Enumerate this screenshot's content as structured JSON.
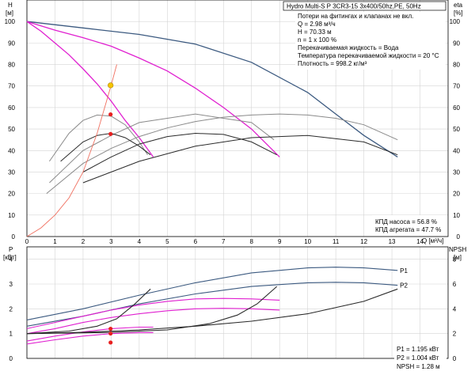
{
  "header": {
    "pump_title": "Hydro Multi-S P 3CR3-15 3x400/50hz,PE, 50Hz"
  },
  "info": {
    "lines": [
      "Потери на фитингах и клапанах не вкл.",
      "Q = 2.98 м³/ч",
      "H = 70.33 м",
      "n = 1 x 100 %",
      "Перекачиваемая жидкость = Вода",
      "Температура перекачиваемой жидкости = 20 °C",
      "Плотность = 998.2 кг/м³"
    ],
    "eff_lines": [
      "КПД насоса = 56.8 %",
      "КПД агрегата = 47.7 %"
    ],
    "power_lines": [
      "P1 = 1.195 кВт",
      "P2 = 1.004 кВт",
      "NPSH = 1.28 м"
    ]
  },
  "colors": {
    "dark_blue": "#3c5a80",
    "magenta": "#e020d0",
    "dark": "#2a2a2a",
    "grey": "#8a8a8a",
    "system_curve": "#f07060",
    "point_marker": "#e82020",
    "duty_marker": "#f5c400",
    "grid": "#d4d4d4"
  },
  "chart_data": [
    {
      "type": "line",
      "name": "head_efficiency",
      "xlabel": "Q [м³/ч]",
      "ylabel_left": "H",
      "ylabel_left_unit": "[м]",
      "ylabel_right": "eta",
      "ylabel_right_unit": "[%]",
      "xlim": [
        0,
        15
      ],
      "ylim": [
        0,
        110
      ],
      "y2lim": [
        0,
        110
      ],
      "xticks": [
        0,
        1,
        2,
        3,
        4,
        5,
        6,
        7,
        8,
        9,
        10,
        11,
        12,
        13,
        14
      ],
      "yticks": [
        0,
        10,
        20,
        30,
        40,
        50,
        60,
        70,
        80,
        90,
        100
      ],
      "grid": true,
      "series": [
        {
          "kind": "head",
          "color": "dark_blue",
          "x": [
            0,
            2,
            4,
            6,
            8,
            10,
            11,
            12,
            13.2
          ],
          "y": [
            100,
            97,
            94,
            89.5,
            81,
            67,
            57,
            47,
            37
          ]
        },
        {
          "kind": "head",
          "color": "magenta",
          "x": [
            0,
            1,
            2,
            3,
            4,
            5,
            6,
            7,
            8,
            9
          ],
          "y": [
            100,
            96,
            92.5,
            88.5,
            83,
            77,
            69,
            60,
            50,
            37
          ]
        },
        {
          "kind": "head",
          "color": "magenta",
          "x": [
            0,
            0.5,
            1,
            1.5,
            2,
            2.5,
            3,
            3.5,
            4,
            4.5
          ],
          "y": [
            100,
            95.5,
            90,
            84.5,
            78,
            71,
            63,
            54,
            46,
            37
          ]
        },
        {
          "kind": "efficiency",
          "color": "grey",
          "x": [
            0.8,
            1.5,
            2,
            2.5,
            3,
            3.5,
            4,
            4.3
          ],
          "y": [
            35,
            48,
            54,
            56.5,
            56,
            52,
            44,
            38
          ]
        },
        {
          "kind": "efficiency",
          "color": "grey",
          "x": [
            0.8,
            2,
            3,
            4,
            6,
            8,
            8.8
          ],
          "y": [
            25,
            40,
            47,
            53,
            57,
            53,
            45
          ]
        },
        {
          "kind": "efficiency",
          "color": "grey",
          "x": [
            0.7,
            2,
            3,
            4,
            5,
            6,
            7,
            8,
            9,
            10,
            11,
            12,
            13.2
          ],
          "y": [
            20,
            34,
            41,
            46.5,
            50.5,
            53.5,
            55.5,
            56.5,
            57,
            56.5,
            55,
            52,
            45
          ]
        },
        {
          "kind": "efficiency",
          "color": "dark",
          "x": [
            1.2,
            2,
            2.5,
            3,
            3.5,
            4,
            4.4
          ],
          "y": [
            35,
            44,
            47,
            48,
            46,
            42,
            38
          ]
        },
        {
          "kind": "efficiency",
          "color": "dark",
          "x": [
            2,
            3,
            4,
            5,
            6,
            7,
            8,
            8.9
          ],
          "y": [
            30,
            37,
            43,
            46.5,
            48,
            47.5,
            44,
            38
          ]
        },
        {
          "kind": "efficiency",
          "color": "dark",
          "x": [
            2,
            4,
            6,
            8,
            10,
            12,
            13.2
          ],
          "y": [
            25,
            35,
            42,
            46,
            47,
            44,
            38
          ]
        },
        {
          "kind": "system",
          "color": "system_curve",
          "x": [
            0,
            0.5,
            1,
            1.5,
            2,
            2.5,
            3,
            3.2
          ],
          "y": [
            0,
            4,
            10,
            18,
            30,
            48,
            70.33,
            80
          ]
        }
      ],
      "markers": [
        {
          "kind": "duty_point",
          "x": 2.98,
          "y": 70.33
        },
        {
          "kind": "point",
          "x": 2.98,
          "y": 56.8
        },
        {
          "kind": "point",
          "x": 2.98,
          "y": 47.7
        }
      ]
    },
    {
      "type": "line",
      "name": "power_npsh",
      "xlim": [
        0,
        15
      ],
      "ylim": [
        0,
        4.5
      ],
      "y2lim": [
        0,
        9
      ],
      "ylabel_left": "P",
      "ylabel_left_unit": "[кВт]",
      "ylabel_right": "NPSH",
      "ylabel_right_unit": "[м]",
      "yticks": [
        0,
        1,
        2,
        3,
        4
      ],
      "y2ticks": [
        0,
        2,
        4,
        6,
        8
      ],
      "grid": true,
      "series": [
        {
          "kind": "power",
          "name": "P1",
          "label": "P1",
          "color": "dark_blue",
          "x": [
            0,
            2,
            4,
            6,
            8,
            10,
            11,
            12,
            13.2
          ],
          "y": [
            1.55,
            2.0,
            2.55,
            3.05,
            3.45,
            3.65,
            3.68,
            3.65,
            3.55
          ]
        },
        {
          "kind": "power",
          "name": "P2",
          "label": "P2",
          "color": "dark_blue",
          "x": [
            0,
            2,
            4,
            6,
            8,
            10,
            11,
            12,
            13.2
          ],
          "y": [
            1.3,
            1.7,
            2.2,
            2.6,
            2.9,
            3.05,
            3.07,
            3.05,
            2.95
          ]
        },
        {
          "kind": "power",
          "color": "magenta",
          "x": [
            0,
            1,
            2,
            3,
            4,
            5,
            6,
            7,
            8,
            9
          ],
          "y": [
            1.2,
            1.45,
            1.7,
            1.95,
            2.15,
            2.3,
            2.4,
            2.42,
            2.4,
            2.35
          ]
        },
        {
          "kind": "power",
          "color": "magenta",
          "x": [
            0,
            1,
            2,
            3,
            4,
            5,
            6,
            7,
            8,
            9
          ],
          "y": [
            1.0,
            1.2,
            1.45,
            1.65,
            1.8,
            1.92,
            2.0,
            2.02,
            2.0,
            1.95
          ]
        },
        {
          "kind": "power",
          "color": "magenta",
          "x": [
            0,
            1,
            2,
            3,
            4,
            4.5
          ],
          "y": [
            0.7,
            0.9,
            1.07,
            1.2,
            1.26,
            1.26
          ]
        },
        {
          "kind": "power",
          "color": "magenta",
          "x": [
            0,
            1,
            2,
            3,
            4,
            4.5
          ],
          "y": [
            0.58,
            0.75,
            0.9,
            1.0,
            1.04,
            1.04
          ]
        },
        {
          "kind": "npsh",
          "color": "dark",
          "x": [
            0,
            2,
            4,
            6,
            8,
            10,
            12,
            13.2
          ],
          "y": [
            1.0,
            1.05,
            1.15,
            1.3,
            1.5,
            1.8,
            2.3,
            2.8
          ]
        },
        {
          "kind": "npsh",
          "color": "dark",
          "x": [
            0,
            3,
            5,
            6.5,
            7.5,
            8.2,
            8.9
          ],
          "y": [
            1.0,
            1.05,
            1.15,
            1.4,
            1.75,
            2.2,
            2.9
          ]
        },
        {
          "kind": "npsh",
          "color": "dark",
          "x": [
            0,
            1.5,
            2.5,
            3.2,
            3.8,
            4.4
          ],
          "y": [
            1.0,
            1.1,
            1.3,
            1.6,
            2.15,
            2.8
          ]
        }
      ],
      "markers": [
        {
          "kind": "point",
          "x": 2.98,
          "y": 1.195
        },
        {
          "kind": "point",
          "x": 2.98,
          "y": 1.004
        },
        {
          "kind": "point",
          "x": 2.98,
          "y": 0.64
        }
      ]
    }
  ]
}
